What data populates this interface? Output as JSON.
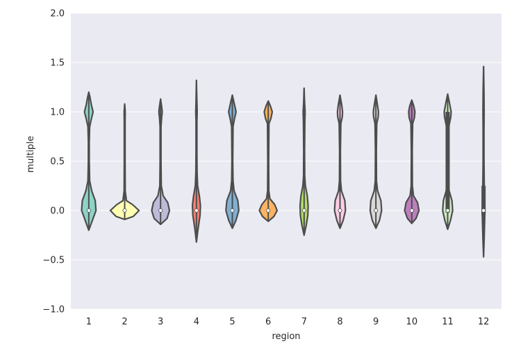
{
  "chart_data": {
    "type": "violin",
    "xlabel": "region",
    "ylabel": "multiple",
    "ylim": [
      -1.0,
      2.0
    ],
    "yticks": [
      2.0,
      1.5,
      1.0,
      0.5,
      0.0,
      -0.5,
      -1.0
    ],
    "ytick_labels": [
      "2.0",
      "1.5",
      "1.0",
      "0.5",
      "0.0",
      "−0.5",
      "−1.0"
    ],
    "grid": true,
    "background": "#eaeaf2",
    "categories": [
      "1",
      "2",
      "3",
      "4",
      "5",
      "6",
      "7",
      "8",
      "9",
      "10",
      "11",
      "12"
    ],
    "violins": [
      {
        "category": "1",
        "color": "#8dd3c7",
        "min": -0.2,
        "max": 1.2,
        "median": 0.0,
        "profile": [
          [
            -0.2,
            0.0
          ],
          [
            -0.1,
            0.25
          ],
          [
            0.0,
            0.5
          ],
          [
            0.1,
            0.45
          ],
          [
            0.2,
            0.2
          ],
          [
            0.3,
            0.06
          ],
          [
            0.5,
            0.03
          ],
          [
            0.7,
            0.03
          ],
          [
            0.85,
            0.06
          ],
          [
            0.93,
            0.18
          ],
          [
            1.0,
            0.3
          ],
          [
            1.07,
            0.18
          ],
          [
            1.15,
            0.08
          ],
          [
            1.2,
            0.0
          ]
        ]
      },
      {
        "category": "2",
        "color": "#ffffb3",
        "min": -0.09,
        "max": 1.08,
        "median": 0.0,
        "profile": [
          [
            -0.09,
            0.0
          ],
          [
            -0.06,
            0.6
          ],
          [
            0.0,
            1.0
          ],
          [
            0.06,
            0.55
          ],
          [
            0.1,
            0.12
          ],
          [
            0.2,
            0.04
          ],
          [
            0.5,
            0.03
          ],
          [
            0.9,
            0.03
          ],
          [
            1.0,
            0.04
          ],
          [
            1.08,
            0.0
          ]
        ]
      },
      {
        "category": "3",
        "color": "#bebada",
        "min": -0.14,
        "max": 1.13,
        "median": 0.0,
        "profile": [
          [
            -0.14,
            0.0
          ],
          [
            -0.08,
            0.45
          ],
          [
            0.0,
            0.62
          ],
          [
            0.08,
            0.5
          ],
          [
            0.15,
            0.18
          ],
          [
            0.25,
            0.05
          ],
          [
            0.5,
            0.03
          ],
          [
            0.85,
            0.03
          ],
          [
            0.95,
            0.08
          ],
          [
            1.0,
            0.12
          ],
          [
            1.05,
            0.08
          ],
          [
            1.13,
            0.0
          ]
        ]
      },
      {
        "category": "4",
        "color": "#fb8072",
        "min": -0.32,
        "max": 1.32,
        "median": 0.0,
        "profile": [
          [
            -0.32,
            0.0
          ],
          [
            -0.2,
            0.1
          ],
          [
            -0.05,
            0.25
          ],
          [
            0.05,
            0.28
          ],
          [
            0.15,
            0.2
          ],
          [
            0.25,
            0.08
          ],
          [
            0.4,
            0.04
          ],
          [
            0.6,
            0.03
          ],
          [
            0.9,
            0.03
          ],
          [
            1.0,
            0.05
          ],
          [
            1.1,
            0.03
          ],
          [
            1.32,
            0.0
          ]
        ]
      },
      {
        "category": "5",
        "color": "#80b1d3",
        "min": -0.18,
        "max": 1.17,
        "median": 0.0,
        "profile": [
          [
            -0.18,
            0.0
          ],
          [
            -0.1,
            0.25
          ],
          [
            0.0,
            0.45
          ],
          [
            0.1,
            0.38
          ],
          [
            0.2,
            0.12
          ],
          [
            0.3,
            0.05
          ],
          [
            0.5,
            0.03
          ],
          [
            0.85,
            0.05
          ],
          [
            0.93,
            0.15
          ],
          [
            1.0,
            0.26
          ],
          [
            1.08,
            0.14
          ],
          [
            1.17,
            0.0
          ]
        ]
      },
      {
        "category": "6",
        "color": "#fdb462",
        "min": -0.11,
        "max": 1.11,
        "median": 0.0,
        "profile": [
          [
            -0.11,
            0.0
          ],
          [
            -0.06,
            0.4
          ],
          [
            0.0,
            0.62
          ],
          [
            0.06,
            0.45
          ],
          [
            0.12,
            0.12
          ],
          [
            0.2,
            0.04
          ],
          [
            0.5,
            0.03
          ],
          [
            0.88,
            0.05
          ],
          [
            0.93,
            0.18
          ],
          [
            1.0,
            0.28
          ],
          [
            1.06,
            0.15
          ],
          [
            1.11,
            0.0
          ]
        ]
      },
      {
        "category": "7",
        "color": "#b3de69",
        "min": -0.25,
        "max": 1.24,
        "median": 0.0,
        "profile": [
          [
            -0.25,
            0.0
          ],
          [
            -0.15,
            0.15
          ],
          [
            -0.05,
            0.26
          ],
          [
            0.05,
            0.28
          ],
          [
            0.15,
            0.22
          ],
          [
            0.25,
            0.09
          ],
          [
            0.35,
            0.04
          ],
          [
            0.6,
            0.03
          ],
          [
            0.9,
            0.05
          ],
          [
            1.0,
            0.07
          ],
          [
            1.1,
            0.03
          ],
          [
            1.24,
            0.0
          ]
        ]
      },
      {
        "category": "8",
        "color": "#fccde5",
        "min": -0.18,
        "max": 1.17,
        "median": 0.0,
        "profile": [
          [
            -0.18,
            0.0
          ],
          [
            -0.1,
            0.22
          ],
          [
            0.0,
            0.38
          ],
          [
            0.1,
            0.34
          ],
          [
            0.2,
            0.1
          ],
          [
            0.3,
            0.04
          ],
          [
            0.6,
            0.03
          ],
          [
            0.88,
            0.06
          ],
          [
            0.95,
            0.16
          ],
          [
            1.0,
            0.18
          ],
          [
            1.07,
            0.12
          ],
          [
            1.17,
            0.0
          ]
        ]
      },
      {
        "category": "9",
        "color": "#d9d9d9",
        "min": -0.18,
        "max": 1.17,
        "median": 0.0,
        "profile": [
          [
            -0.18,
            0.0
          ],
          [
            -0.1,
            0.25
          ],
          [
            0.0,
            0.4
          ],
          [
            0.1,
            0.35
          ],
          [
            0.2,
            0.12
          ],
          [
            0.3,
            0.04
          ],
          [
            0.6,
            0.03
          ],
          [
            0.88,
            0.06
          ],
          [
            0.95,
            0.16
          ],
          [
            1.0,
            0.18
          ],
          [
            1.08,
            0.1
          ],
          [
            1.17,
            0.0
          ]
        ]
      },
      {
        "category": "10",
        "color": "#bc80bd",
        "min": -0.13,
        "max": 1.12,
        "median": 0.0,
        "profile": [
          [
            -0.13,
            0.0
          ],
          [
            -0.08,
            0.3
          ],
          [
            0.0,
            0.5
          ],
          [
            0.08,
            0.4
          ],
          [
            0.15,
            0.12
          ],
          [
            0.25,
            0.04
          ],
          [
            0.6,
            0.03
          ],
          [
            0.88,
            0.06
          ],
          [
            0.94,
            0.18
          ],
          [
            1.0,
            0.22
          ],
          [
            1.06,
            0.14
          ],
          [
            1.12,
            0.0
          ]
        ]
      },
      {
        "category": "11",
        "color": "#ccebc5",
        "min": -0.19,
        "max": 1.18,
        "median": 0.0,
        "profile": [
          [
            -0.19,
            0.0
          ],
          [
            -0.1,
            0.2
          ],
          [
            0.0,
            0.35
          ],
          [
            0.1,
            0.3
          ],
          [
            0.2,
            0.1
          ],
          [
            0.35,
            0.04
          ],
          [
            0.6,
            0.04
          ],
          [
            0.85,
            0.08
          ],
          [
            0.95,
            0.22
          ],
          [
            1.0,
            0.24
          ],
          [
            1.08,
            0.14
          ],
          [
            1.18,
            0.0
          ]
        ]
      },
      {
        "category": "12",
        "color": "#ffed6f",
        "min": -0.47,
        "max": 1.46,
        "median": 0.0,
        "profile": [
          [
            -0.47,
            0.0
          ],
          [
            -0.3,
            0.04
          ],
          [
            -0.1,
            0.08
          ],
          [
            0.0,
            0.09
          ],
          [
            0.1,
            0.08
          ],
          [
            0.25,
            0.05
          ],
          [
            0.5,
            0.03
          ],
          [
            0.8,
            0.03
          ],
          [
            1.0,
            0.04
          ],
          [
            1.2,
            0.03
          ],
          [
            1.46,
            0.0
          ]
        ]
      }
    ],
    "boxes": [
      {
        "category": "11",
        "q1": -0.02,
        "q3": 1.0
      },
      {
        "category": "12",
        "q1": -0.05,
        "q3": 0.25
      }
    ]
  }
}
